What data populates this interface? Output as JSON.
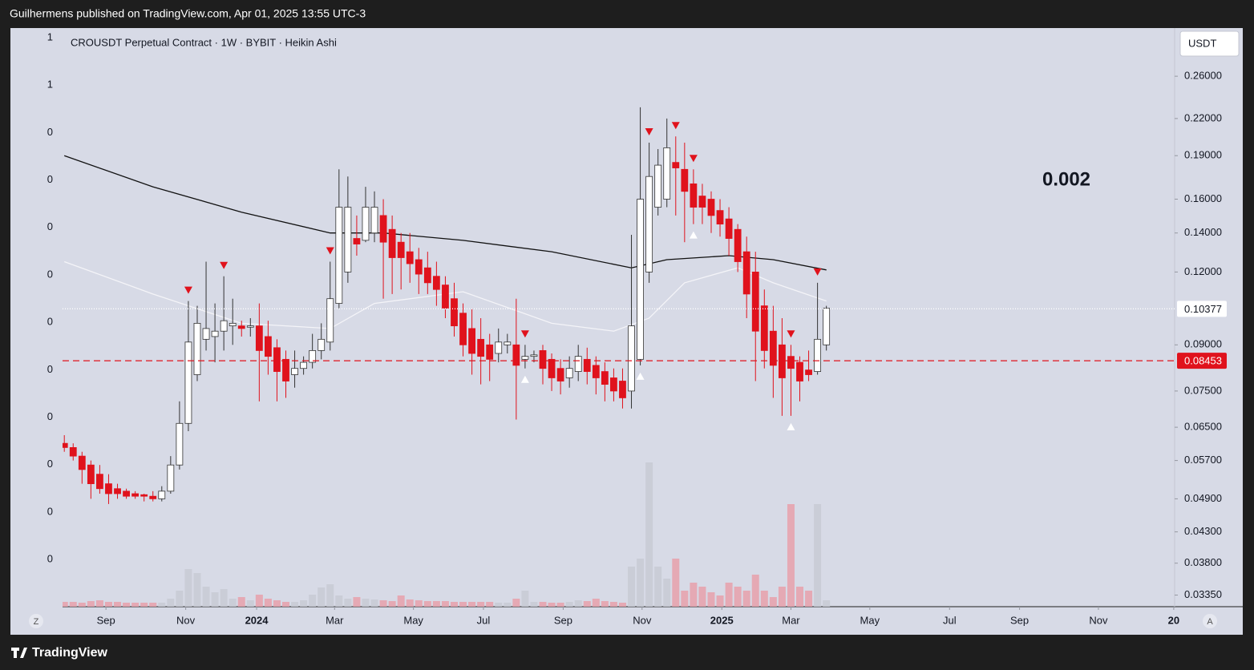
{
  "header": {
    "text": "Guilhermens published on TradingView.com, Apr 01, 2025 13:55 UTC-3"
  },
  "footer": {
    "brand": "TradingView"
  },
  "ui": {
    "left_button": "Z",
    "right_button": "A"
  },
  "chart_data": {
    "type": "candlestick",
    "title": "CROUSDT Perpetual Contract · 1W · BYBIT · Heikin Ashi",
    "currency": "USDT",
    "annotation": "0.002",
    "log_scale": true,
    "up_color": "#ffffff",
    "down_color": "#e0121c",
    "ylim": [
      0.032,
      0.3145
    ],
    "yticks": [
      {
        "value": 0.26,
        "label": "0.26000"
      },
      {
        "value": 0.22,
        "label": "0.22000"
      },
      {
        "value": 0.19,
        "label": "0.19000"
      },
      {
        "value": 0.16,
        "label": "0.16000"
      },
      {
        "value": 0.14,
        "label": "0.14000"
      },
      {
        "value": 0.12,
        "label": "0.12000"
      },
      {
        "value": 0.09,
        "label": "0.09000"
      },
      {
        "value": 0.075,
        "label": "0.07500"
      },
      {
        "value": 0.065,
        "label": "0.06500"
      },
      {
        "value": 0.057,
        "label": "0.05700"
      },
      {
        "value": 0.049,
        "label": "0.04900"
      },
      {
        "value": 0.043,
        "label": "0.04300"
      },
      {
        "value": 0.038,
        "label": "0.03800"
      },
      {
        "value": 0.0335,
        "label": "0.03350"
      }
    ],
    "xlim": [
      -0.2,
      125.3
    ],
    "xticks": [
      {
        "value": 4.7,
        "label": "Sep"
      },
      {
        "value": 13.7,
        "label": "Nov"
      },
      {
        "value": 21.7,
        "label": "2024"
      },
      {
        "value": 30.5,
        "label": "Mar"
      },
      {
        "value": 39.4,
        "label": "May"
      },
      {
        "value": 47.3,
        "label": "Jul"
      },
      {
        "value": 56.3,
        "label": "Sep"
      },
      {
        "value": 65.2,
        "label": "Nov"
      },
      {
        "value": 74.2,
        "label": "2025"
      },
      {
        "value": 82.0,
        "label": "Mar"
      },
      {
        "value": 90.9,
        "label": "May"
      },
      {
        "value": 99.9,
        "label": "Jul"
      },
      {
        "value": 107.8,
        "label": "Sep"
      },
      {
        "value": 116.7,
        "label": "Nov"
      },
      {
        "value": 125.2,
        "label": "20"
      }
    ],
    "candles": {
      "open": [
        0.061,
        0.06,
        0.058,
        0.056,
        0.054,
        0.052,
        0.051,
        0.0505,
        0.05,
        0.0498,
        0.0495,
        0.049,
        0.0505,
        0.056,
        0.066,
        0.08,
        0.092,
        0.093,
        0.095,
        0.097,
        0.097,
        0.0965,
        0.097,
        0.093,
        0.089,
        0.085,
        0.08,
        0.082,
        0.084,
        0.088,
        0.091,
        0.106,
        0.12,
        0.137,
        0.136,
        0.14,
        0.15,
        0.142,
        0.135,
        0.13,
        0.126,
        0.122,
        0.118,
        0.114,
        0.108,
        0.102,
        0.096,
        0.092,
        0.09,
        0.087,
        0.09,
        0.09,
        0.085,
        0.086,
        0.088,
        0.085,
        0.082,
        0.079,
        0.081,
        0.085,
        0.083,
        0.081,
        0.079,
        0.078,
        0.075,
        0.085,
        0.12,
        0.155,
        0.16,
        0.185,
        0.18,
        0.17,
        0.162,
        0.16,
        0.153,
        0.148,
        0.142,
        0.13,
        0.12,
        0.105,
        0.095,
        0.09,
        0.086,
        0.084,
        0.0815,
        0.081,
        0.09
      ],
      "high": [
        0.063,
        0.061,
        0.059,
        0.057,
        0.056,
        0.054,
        0.052,
        0.051,
        0.0505,
        0.05,
        0.0505,
        0.0515,
        0.058,
        0.072,
        0.107,
        0.105,
        0.125,
        0.106,
        0.118,
        0.108,
        0.099,
        0.1,
        0.106,
        0.099,
        0.092,
        0.088,
        0.088,
        0.086,
        0.094,
        0.098,
        0.125,
        0.18,
        0.175,
        0.15,
        0.168,
        0.165,
        0.16,
        0.15,
        0.14,
        0.14,
        0.132,
        0.13,
        0.125,
        0.118,
        0.115,
        0.106,
        0.104,
        0.1,
        0.094,
        0.096,
        0.094,
        0.108,
        0.09,
        0.088,
        0.09,
        0.087,
        0.085,
        0.086,
        0.09,
        0.089,
        0.086,
        0.084,
        0.082,
        0.082,
        0.139,
        0.23,
        0.2,
        0.195,
        0.22,
        0.205,
        0.2,
        0.18,
        0.17,
        0.165,
        0.16,
        0.155,
        0.145,
        0.138,
        0.13,
        0.112,
        0.105,
        0.1,
        0.09,
        0.086,
        0.088,
        0.115,
        0.105
      ],
      "low": [
        0.059,
        0.057,
        0.052,
        0.049,
        0.05,
        0.048,
        0.049,
        0.049,
        0.049,
        0.0485,
        0.0485,
        0.0485,
        0.05,
        0.055,
        0.064,
        0.078,
        0.088,
        0.084,
        0.088,
        0.09,
        0.093,
        0.093,
        0.072,
        0.08,
        0.072,
        0.073,
        0.076,
        0.08,
        0.082,
        0.085,
        0.088,
        0.104,
        0.115,
        0.128,
        0.135,
        0.135,
        0.108,
        0.11,
        0.112,
        0.115,
        0.11,
        0.11,
        0.105,
        0.1,
        0.093,
        0.086,
        0.08,
        0.077,
        0.078,
        0.084,
        0.087,
        0.067,
        0.082,
        0.084,
        0.077,
        0.075,
        0.074,
        0.076,
        0.078,
        0.077,
        0.074,
        0.072,
        0.072,
        0.07,
        0.07,
        0.083,
        0.115,
        0.15,
        0.155,
        0.15,
        0.135,
        0.145,
        0.145,
        0.14,
        0.138,
        0.128,
        0.12,
        0.1,
        0.078,
        0.082,
        0.073,
        0.068,
        0.068,
        0.072,
        0.078,
        0.08,
        0.088
      ],
      "close": [
        0.06,
        0.058,
        0.055,
        0.052,
        0.051,
        0.05,
        0.05,
        0.0495,
        0.0495,
        0.0495,
        0.049,
        0.0505,
        0.056,
        0.066,
        0.091,
        0.098,
        0.096,
        0.095,
        0.099,
        0.098,
        0.096,
        0.097,
        0.088,
        0.086,
        0.081,
        0.078,
        0.082,
        0.084,
        0.088,
        0.092,
        0.108,
        0.155,
        0.155,
        0.134,
        0.155,
        0.155,
        0.135,
        0.127,
        0.127,
        0.124,
        0.119,
        0.115,
        0.112,
        0.104,
        0.097,
        0.09,
        0.087,
        0.086,
        0.085,
        0.091,
        0.091,
        0.083,
        0.086,
        0.0865,
        0.082,
        0.079,
        0.078,
        0.082,
        0.086,
        0.081,
        0.079,
        0.077,
        0.075,
        0.073,
        0.097,
        0.16,
        0.175,
        0.183,
        0.196,
        0.181,
        0.165,
        0.155,
        0.155,
        0.15,
        0.145,
        0.137,
        0.125,
        0.11,
        0.095,
        0.088,
        0.083,
        0.079,
        0.082,
        0.078,
        0.08,
        0.092,
        0.104
      ]
    },
    "volume": {
      "vlim": [
        0,
        200
      ],
      "values": [
        6,
        6,
        5,
        7,
        8,
        6,
        6,
        5,
        5,
        5,
        5,
        5,
        10,
        20,
        47,
        42,
        25,
        18,
        22,
        10,
        12,
        8,
        15,
        10,
        8,
        6,
        6,
        8,
        15,
        24,
        28,
        14,
        10,
        12,
        10,
        9,
        8,
        7,
        14,
        9,
        8,
        7,
        7,
        7,
        6,
        6,
        6,
        6,
        6,
        5,
        5,
        10,
        20,
        6,
        6,
        5,
        5,
        6,
        8,
        7,
        10,
        7,
        6,
        5,
        50,
        60,
        180,
        50,
        35,
        60,
        20,
        30,
        25,
        18,
        14,
        30,
        25,
        20,
        40,
        20,
        12,
        25,
        128,
        25,
        20,
        128,
        8
      ]
    },
    "series": [
      {
        "color": "#111111",
        "x": [
          0,
          10,
          20,
          30,
          36,
          45,
          55,
          64,
          68,
          75,
          80,
          86
        ],
        "values": [
          0.19,
          0.168,
          0.152,
          0.14,
          0.14,
          0.136,
          0.13,
          0.122,
          0.126,
          0.128,
          0.126,
          0.121
        ]
      },
      {
        "color": "#f4f4f8",
        "x": [
          0,
          10,
          20,
          30,
          35,
          45,
          55,
          62,
          66,
          70,
          76,
          80,
          86
        ],
        "values": [
          0.125,
          0.11,
          0.098,
          0.096,
          0.106,
          0.111,
          0.098,
          0.095,
          0.1,
          0.115,
          0.122,
          0.115,
          0.107
        ]
      }
    ],
    "signals": {
      "sell": [
        14,
        18,
        30,
        52,
        66,
        69,
        71,
        82,
        85
      ],
      "buy": [
        52,
        65,
        71,
        82
      ]
    },
    "price_lines": [
      {
        "value": 0.10377,
        "label": "0.10377",
        "color": "#ffffff",
        "style": "dotted"
      },
      {
        "value": 0.08453,
        "label": "0.08453",
        "color": "#e0121c",
        "style": "dashed"
      }
    ],
    "left_axis_labels": [
      "1",
      "1",
      "0",
      "0",
      "0",
      "0",
      "0",
      "0",
      "0",
      "0",
      "0",
      "0"
    ]
  }
}
